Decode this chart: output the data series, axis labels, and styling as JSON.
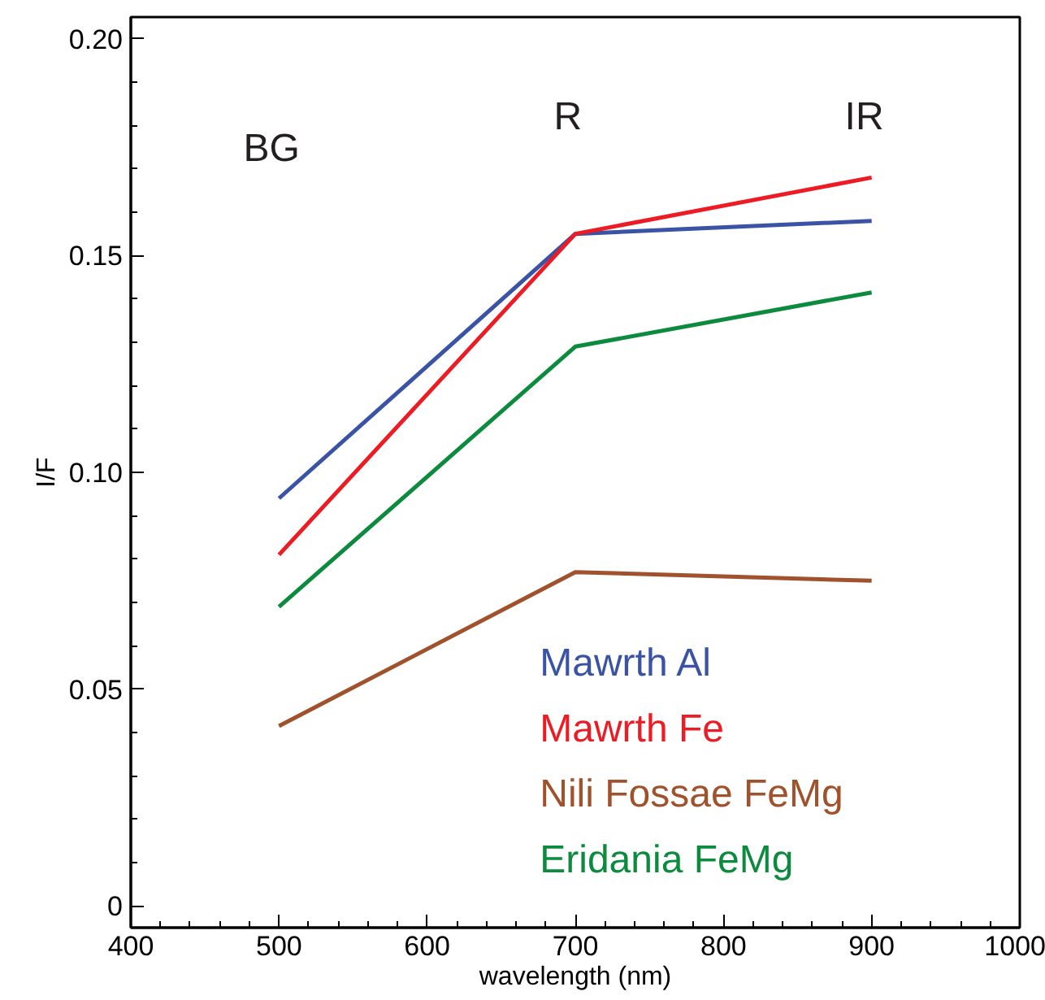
{
  "chart_data": {
    "type": "line",
    "xlabel": "wavelength (nm)",
    "ylabel": "I/F",
    "x": [
      500,
      700,
      900
    ],
    "series": [
      {
        "name": "Mawrth Al",
        "color": "#3a53a4",
        "values": [
          0.094,
          0.155,
          0.158
        ]
      },
      {
        "name": "Mawrth Fe",
        "color": "#ed1c24",
        "values": [
          0.081,
          0.155,
          0.168
        ]
      },
      {
        "name": "Nili Fossae FeMg",
        "color": "#a0522d",
        "values": [
          0.0415,
          0.077,
          0.075
        ]
      },
      {
        "name": "Eridania FeMg",
        "color": "#0c8a3e",
        "values": [
          0.069,
          0.129,
          0.1415
        ]
      }
    ],
    "xlim": [
      400,
      1000
    ],
    "xticks": [
      400,
      500,
      600,
      700,
      800,
      900,
      1000
    ],
    "ylim": [
      -0.005,
      0.205
    ],
    "yticks": [
      {
        "value": 0,
        "label": "0"
      },
      {
        "value": 0.05,
        "label": "0.05"
      },
      {
        "value": 0.1,
        "label": "0.10"
      },
      {
        "value": 0.15,
        "label": "0.15"
      },
      {
        "value": 0.2,
        "label": "0.20"
      }
    ],
    "annotations": [
      "BG",
      "R",
      "IR"
    ],
    "legend": "bottom right",
    "grid": false,
    "line_style": "solid",
    "marker": "none"
  }
}
